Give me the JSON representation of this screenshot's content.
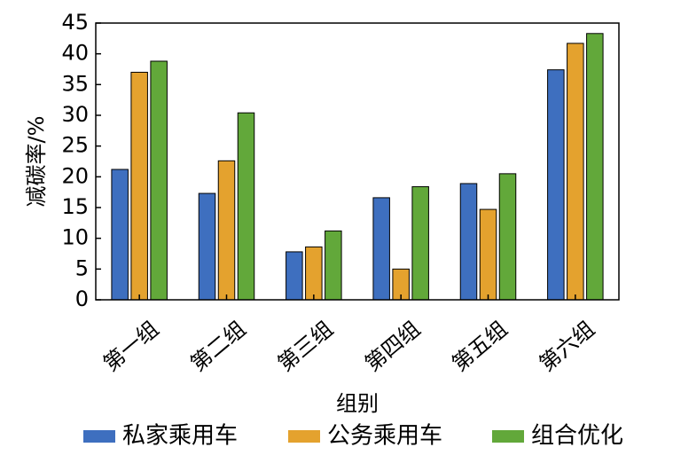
{
  "chart_data": {
    "type": "bar",
    "xlabel": "组别",
    "ylabel": "减碳率/%",
    "ylim": [
      0,
      45
    ],
    "yticks": [
      0,
      5,
      10,
      15,
      20,
      25,
      30,
      35,
      40,
      45
    ],
    "grid": false,
    "legend_position": "bottom",
    "categories": [
      "第一组",
      "第二组",
      "第三组",
      "第四组",
      "第五组",
      "第六组"
    ],
    "series": [
      {
        "name": "私家乘用车",
        "color": "#3E6FBF",
        "values": [
          21.2,
          17.3,
          7.8,
          16.6,
          18.9,
          37.4
        ]
      },
      {
        "name": "公务乘用车",
        "color": "#E4A22E",
        "values": [
          37.0,
          22.6,
          8.6,
          5.0,
          14.7,
          41.7
        ]
      },
      {
        "name": "组合优化",
        "color": "#62A83A",
        "values": [
          38.8,
          30.4,
          11.2,
          18.4,
          20.5,
          43.3
        ]
      }
    ]
  }
}
